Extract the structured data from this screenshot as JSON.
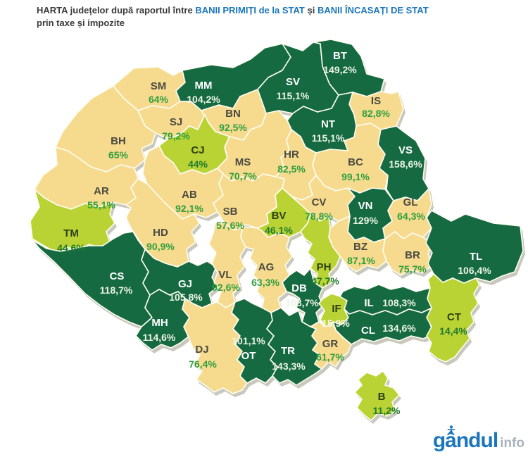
{
  "title": {
    "part1": "HARTA județelor după raportul între ",
    "highlight1": "BANII PRIMIȚI de la STAT",
    "part2": " și ",
    "highlight2": "BANII ÎNCASAȚI DE STAT",
    "line2": "prin taxe și impozite"
  },
  "logo": {
    "name": "gândul",
    "suffix": "info"
  },
  "colors": {
    "band_high": "#156a42",
    "band_mid": "#f6db8f",
    "band_low": "#b9d335",
    "code_on_high": "#ffffff",
    "value_on_high": "#ecf4e6",
    "code_on_mid": "#4a4a40",
    "value_on_mid": "#2f9e3c",
    "code_on_low": "#2e3d14",
    "value_on_low": "#1f7a2d",
    "title_text": "#3b3b3b",
    "title_highlight": "#1c76bc",
    "logo_blue": "#1c76bc",
    "logo_gray": "#a9b4bc",
    "shadow": "#60603f"
  },
  "map": {
    "counties": [
      {
        "code": "SM",
        "value": "64%",
        "band": "mid"
      },
      {
        "code": "MM",
        "value": "104,2%",
        "band": "high"
      },
      {
        "code": "SV",
        "value": "115,1%",
        "band": "high"
      },
      {
        "code": "BT",
        "value": "149,2%",
        "band": "high"
      },
      {
        "code": "IS",
        "value": "82,8%",
        "band": "mid"
      },
      {
        "code": "NT",
        "value": "115,1%",
        "band": "high"
      },
      {
        "code": "BN",
        "value": "92,5%",
        "band": "mid"
      },
      {
        "code": "SJ",
        "value": "79,2%",
        "band": "mid"
      },
      {
        "code": "BH",
        "value": "65%",
        "band": "mid"
      },
      {
        "code": "CJ",
        "value": "44%",
        "band": "low"
      },
      {
        "code": "MS",
        "value": "70,7%",
        "band": "mid"
      },
      {
        "code": "HR",
        "value": "82,5%",
        "band": "mid"
      },
      {
        "code": "BC",
        "value": "99,1%",
        "band": "mid"
      },
      {
        "code": "VS",
        "value": "158,6%",
        "band": "high"
      },
      {
        "code": "AR",
        "value": "55,1%",
        "band": "mid"
      },
      {
        "code": "AB",
        "value": "92,1%",
        "band": "mid"
      },
      {
        "code": "SB",
        "value": "57,6%",
        "band": "mid"
      },
      {
        "code": "CV",
        "value": "78,8%",
        "band": "mid"
      },
      {
        "code": "VN",
        "value": "129%",
        "band": "high"
      },
      {
        "code": "GL",
        "value": "64,3%",
        "band": "mid"
      },
      {
        "code": "TM",
        "value": "44,6%",
        "band": "low"
      },
      {
        "code": "HD",
        "value": "90,9%",
        "band": "mid"
      },
      {
        "code": "BV",
        "value": "46,1%",
        "band": "low"
      },
      {
        "code": "BZ",
        "value": "87,1%",
        "band": "mid"
      },
      {
        "code": "BR",
        "value": "75,7%",
        "band": "mid"
      },
      {
        "code": "TL",
        "value": "106,4%",
        "band": "high"
      },
      {
        "code": "CS",
        "value": "118,7%",
        "band": "high"
      },
      {
        "code": "GJ",
        "value": "105,8%",
        "band": "high"
      },
      {
        "code": "VL",
        "value": "92,6%",
        "band": "mid"
      },
      {
        "code": "AG",
        "value": "63,3%",
        "band": "mid"
      },
      {
        "code": "PH",
        "value": "47,7%",
        "band": "low"
      },
      {
        "code": "DB",
        "value": "108,7%",
        "band": "high"
      },
      {
        "code": "IF",
        "value": "15,9%",
        "band": "low"
      },
      {
        "code": "IL",
        "value": "108,3%",
        "band": "high"
      },
      {
        "code": "CL",
        "value": "134,6%",
        "band": "high"
      },
      {
        "code": "CT",
        "value": "14,4%",
        "band": "low"
      },
      {
        "code": "MH",
        "value": "114,6%",
        "band": "high"
      },
      {
        "code": "DJ",
        "value": "76,4%",
        "band": "mid"
      },
      {
        "code": "OT",
        "value": "101,1%",
        "band": "high"
      },
      {
        "code": "TR",
        "value": "143,3%",
        "band": "high"
      },
      {
        "code": "GR",
        "value": "61,7%",
        "band": "mid"
      },
      {
        "code": "B",
        "value": "11,2%",
        "band": "low"
      }
    ]
  }
}
